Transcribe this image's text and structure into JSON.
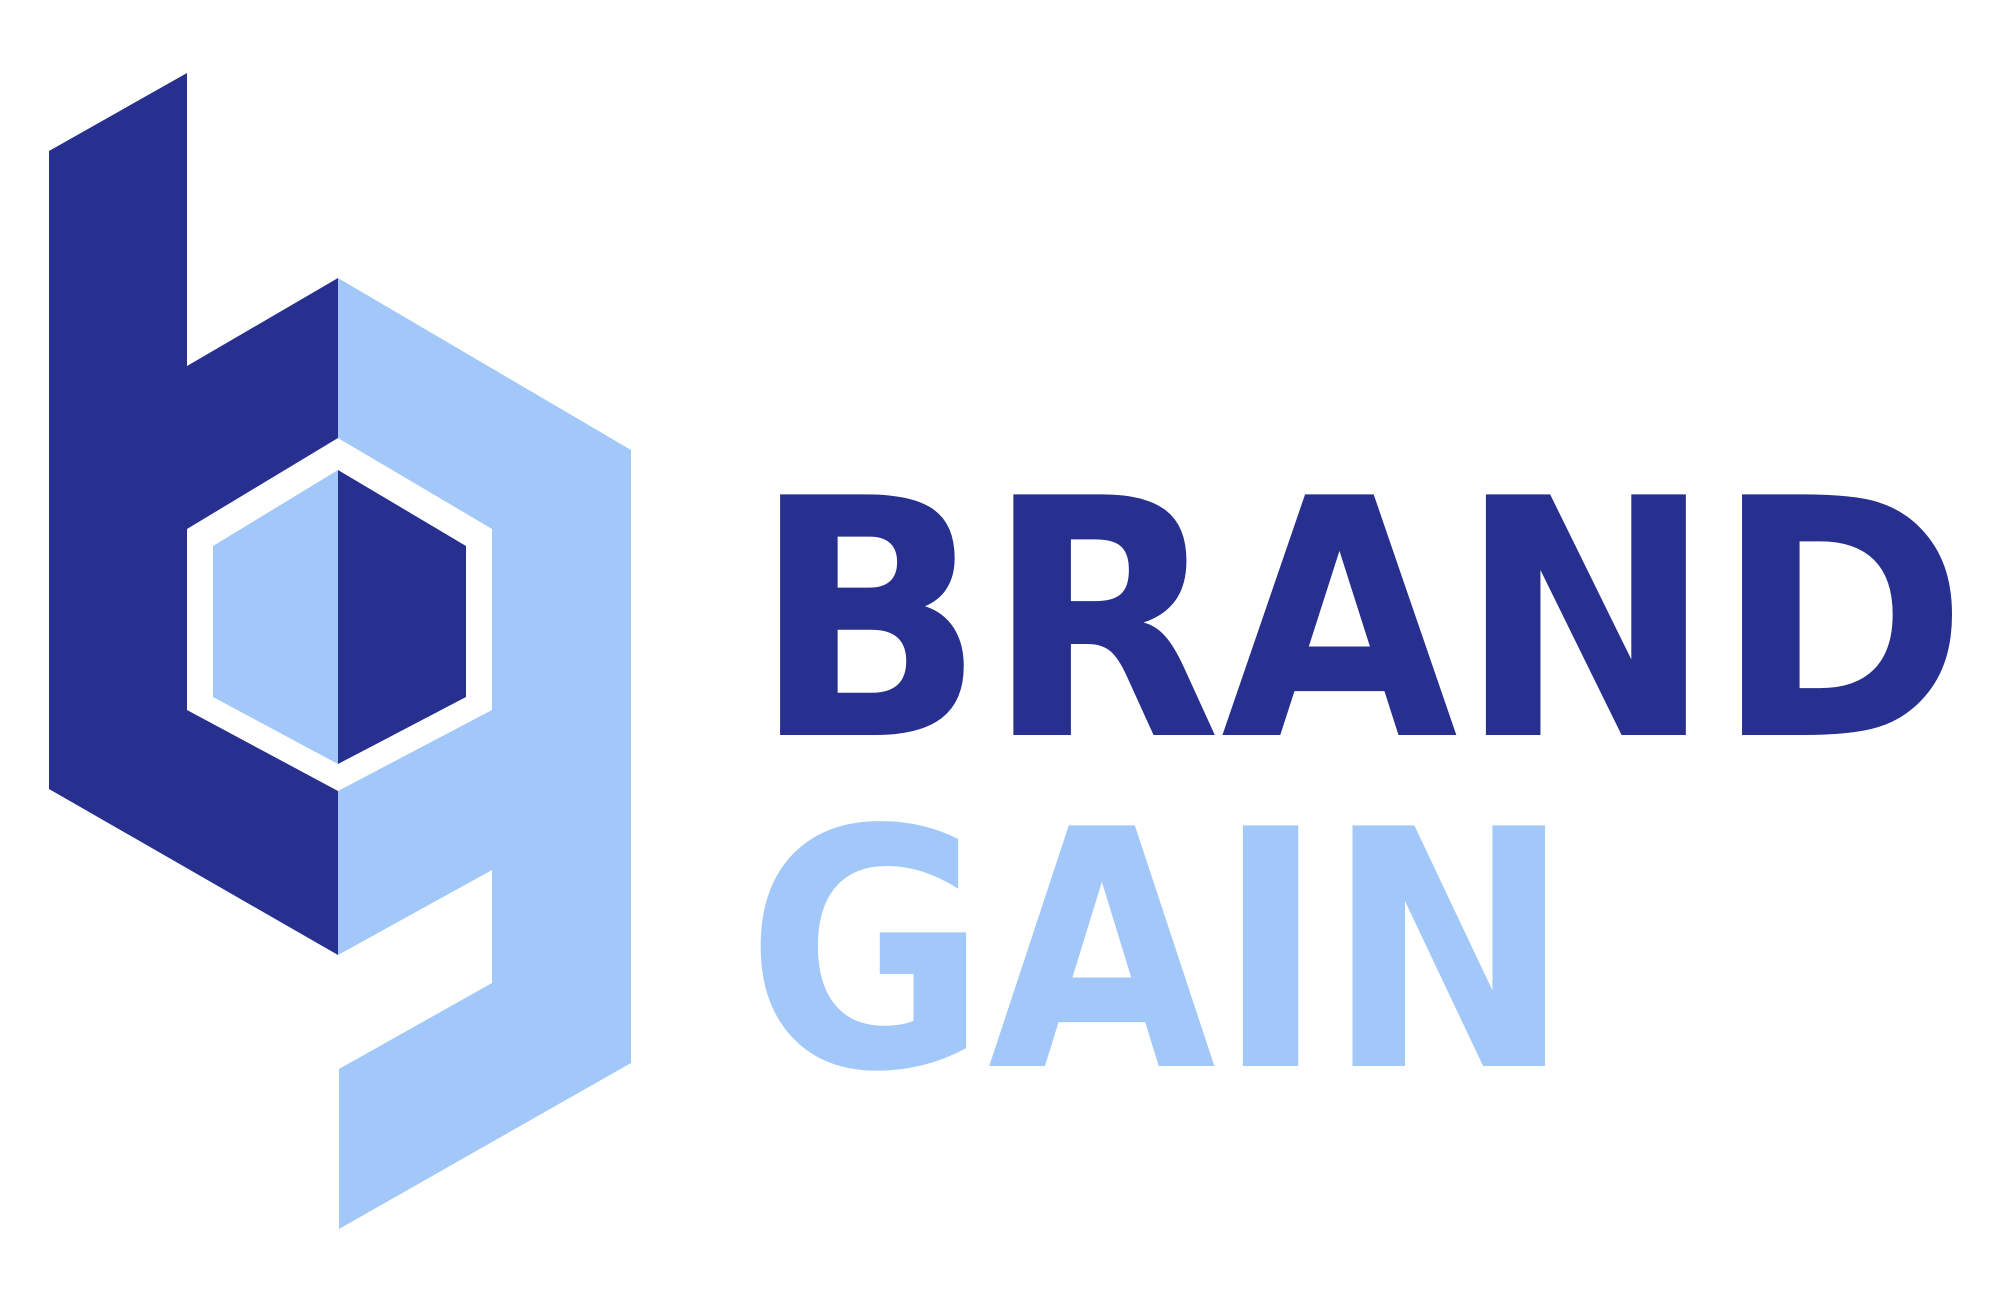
{
  "brand": {
    "name_line1": "BRAND",
    "name_line2": "GAIN"
  },
  "colors": {
    "primary_dark": "#27308f",
    "primary_light": "#a1c8f8",
    "background": "#ffffff"
  },
  "icons": {
    "mark": "bg-monogram-hexagon-icon"
  }
}
